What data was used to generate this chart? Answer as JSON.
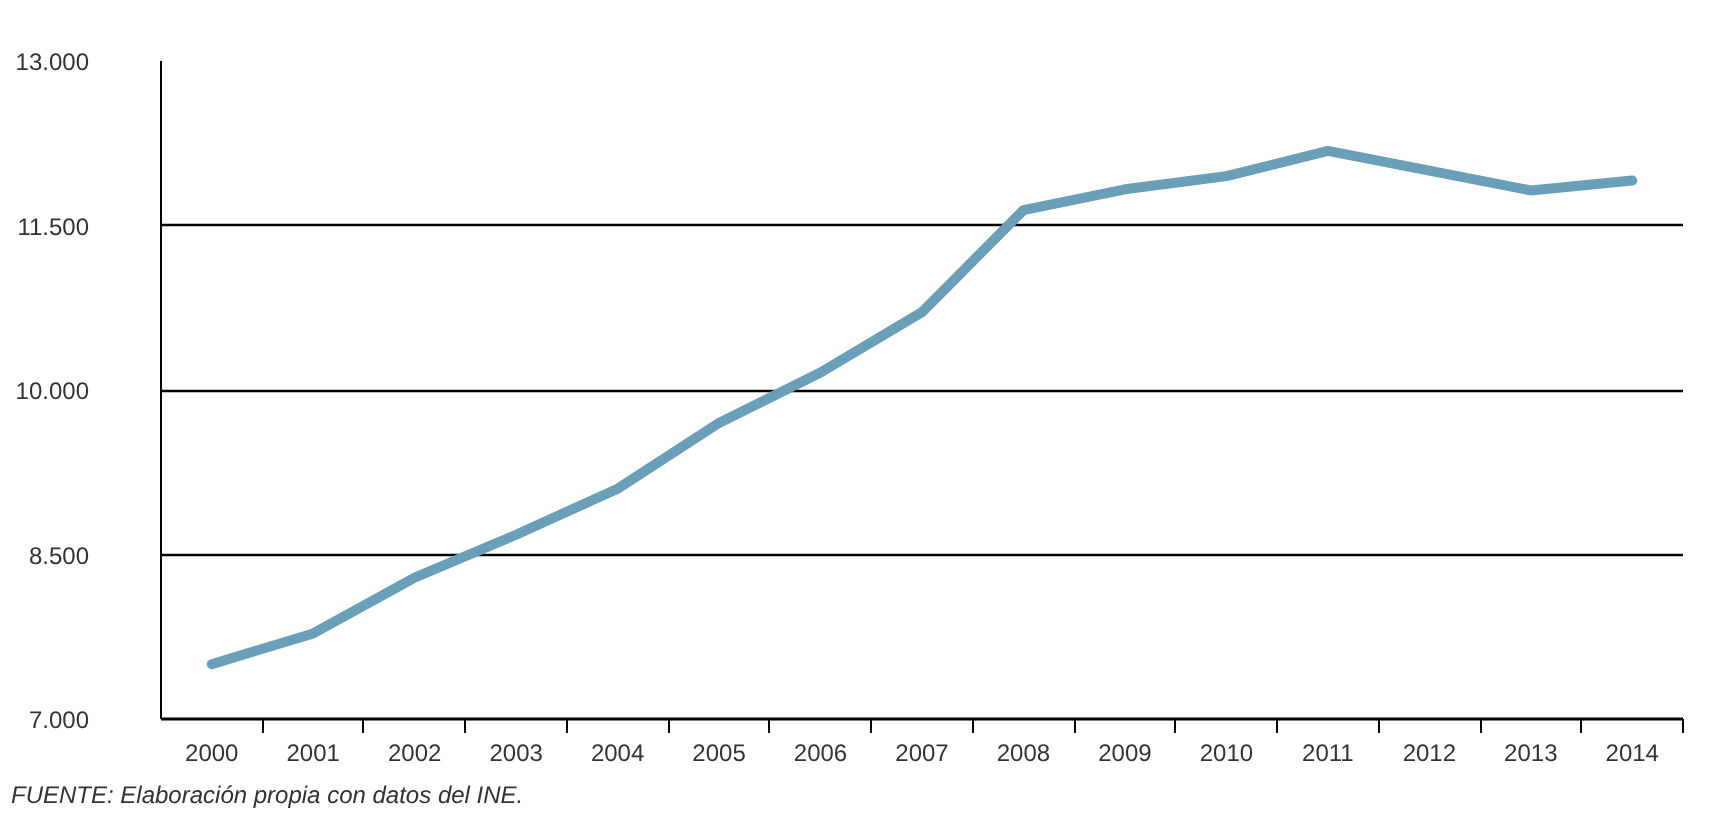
{
  "chart_data": {
    "type": "line",
    "categories": [
      "2000",
      "2001",
      "2002",
      "2003",
      "2004",
      "2005",
      "2006",
      "2007",
      "2008",
      "2009",
      "2010",
      "2011",
      "2012",
      "2013",
      "2014"
    ],
    "series": [
      {
        "color": "#6a9fba",
        "values": [
          7500,
          7780,
          8290,
          8680,
          9100,
          9700,
          10160,
          10710,
          11640,
          11830,
          11950,
          12180,
          12000,
          11820,
          11910
        ]
      }
    ],
    "ylim": [
      7000,
      13000
    ],
    "yticks": [
      {
        "value": 7000,
        "label": "7.000"
      },
      {
        "value": 8500,
        "label": "8.500"
      },
      {
        "value": 10000,
        "label": "10.000"
      },
      {
        "value": 11500,
        "label": "11.500"
      },
      {
        "value": 13000,
        "label": "13.000"
      }
    ],
    "grid": "y",
    "marker": "none",
    "line_style": "solid",
    "annotations": [
      "FUENTE: Elaboración propia con datos del INE."
    ]
  }
}
